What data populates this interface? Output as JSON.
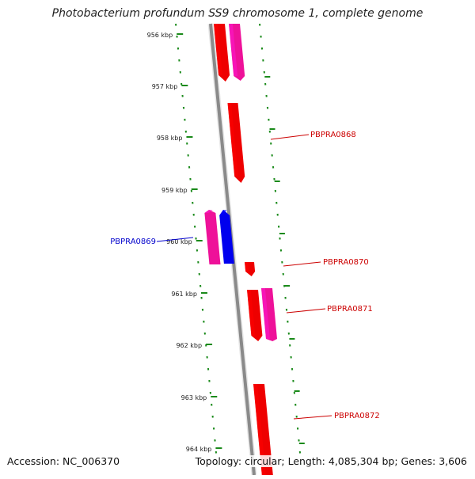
{
  "title": "Photobacterium profundum SS9 chromosome 1, complete genome",
  "footer": {
    "accession": "Accession: NC_006370",
    "summary": "Topology: circular; Length: 4,085,304 bp; Genes: 3,606"
  },
  "ticks": [
    {
      "label": "956 kbp"
    },
    {
      "label": "957 kbp"
    },
    {
      "label": "958 kbp"
    },
    {
      "label": "959 kbp"
    },
    {
      "label": "960 kbp"
    },
    {
      "label": "961 kbp"
    },
    {
      "label": "962 kbp"
    },
    {
      "label": "963 kbp"
    },
    {
      "label": "964 kbp"
    }
  ],
  "genes": [
    {
      "label": "",
      "strand": "forward",
      "color": "#ee0000"
    },
    {
      "label": "",
      "strand": "forward",
      "color": "#ee1199"
    },
    {
      "label": "PBPRA0868",
      "strand": "forward",
      "color": "#ee0000"
    },
    {
      "label": "",
      "strand": "reverse",
      "color": "#ee1199"
    },
    {
      "label": "PBPRA0869",
      "strand": "reverse",
      "color": "#0000ee"
    },
    {
      "label": "PBPRA0870",
      "strand": "forward",
      "color": "#ee0000"
    },
    {
      "label": "PBPRA0871",
      "strand": "forward",
      "color": "#ee0000"
    },
    {
      "label": "",
      "strand": "forward",
      "color": "#ee1199"
    },
    {
      "label": "PBPRA0872",
      "strand": "forward",
      "color": "#ee0000"
    }
  ],
  "colors": {
    "backbone": "#8a8a8a",
    "tick": "#1a8a1a",
    "forward_label": "#cc0000",
    "reverse_label": "#0000cc"
  }
}
